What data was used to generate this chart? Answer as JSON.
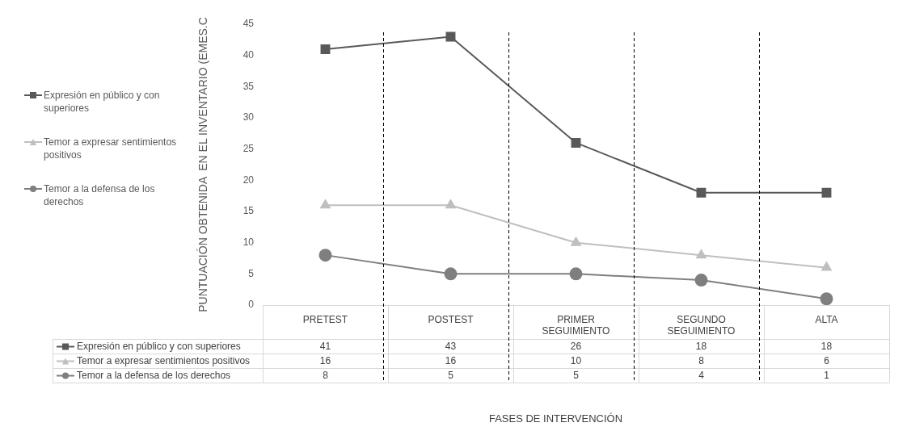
{
  "chart_data": {
    "type": "line",
    "ylabel": "PUNTUACIÓN OBTENIDA  EN EL INVENTARIO (EMES.C",
    "annotations": [
      "FASES DE INTERVENCIÓN"
    ],
    "categories": [
      "PRETEST",
      "POSTEST",
      "PRIMER SEGUIMIENTO",
      "SEGUNDO SEGUIMIENTO",
      "ALTA"
    ],
    "series": [
      {
        "name": "Expresión en público y con superiores",
        "color": "#595959",
        "marker": "square",
        "values": [
          41,
          43,
          26,
          18,
          18
        ]
      },
      {
        "name": "Temor a expresar sentimientos positivos",
        "color": "#bfbfbf",
        "marker": "triangle",
        "values": [
          16,
          16,
          10,
          8,
          6
        ]
      },
      {
        "name": "Temor a la defensa de los derechos",
        "color": "#7f7f7f",
        "marker": "circle",
        "values": [
          8,
          5,
          5,
          4,
          1
        ]
      }
    ],
    "ylim": [
      0,
      45
    ],
    "yticks": [
      0,
      5,
      10,
      15,
      20,
      25,
      30,
      35,
      40,
      45
    ],
    "grid": "x",
    "legend": "left",
    "data_labels": true,
    "line_style": "solid"
  }
}
